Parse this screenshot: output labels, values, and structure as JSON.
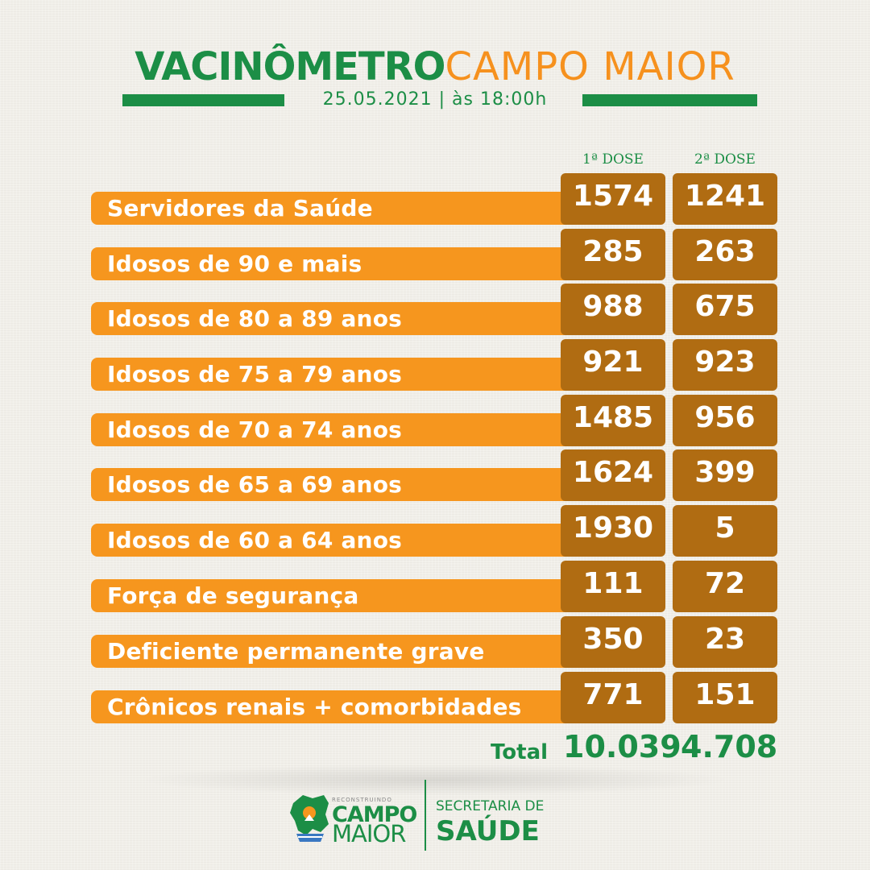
{
  "header": {
    "title_part1": "VACINÔMETRO",
    "title_part2": "CAMPO MAIOR",
    "datetime": "25.05.2021 | às 18:00h"
  },
  "columns": {
    "dose1": "1ª DOSE",
    "dose2": "2ª DOSE"
  },
  "rows": [
    {
      "label": "Servidores da Saúde",
      "dose1": "1574",
      "dose2": "1241"
    },
    {
      "label": "Idosos de 90 e mais",
      "dose1": "285",
      "dose2": "263"
    },
    {
      "label": "Idosos de 80 a 89 anos",
      "dose1": "988",
      "dose2": "675"
    },
    {
      "label": "Idosos de 75 a 79 anos",
      "dose1": "921",
      "dose2": "923"
    },
    {
      "label": "Idosos de 70 a 74 anos",
      "dose1": "1485",
      "dose2": "956"
    },
    {
      "label": "Idosos de 65 a 69 anos",
      "dose1": "1624",
      "dose2": "399"
    },
    {
      "label": "Idosos de 60 a 64 anos",
      "dose1": "1930",
      "dose2": "5"
    },
    {
      "label": "Força de segurança",
      "dose1": "111",
      "dose2": "72"
    },
    {
      "label": "Deficiente permanente grave",
      "dose1": "350",
      "dose2": "23"
    },
    {
      "label": "Crônicos renais + comorbidades",
      "dose1": "771",
      "dose2": "151"
    }
  ],
  "total": {
    "label": "Total",
    "dose1": "10.039",
    "dose2": "4.708"
  },
  "footer": {
    "logo_small": "RECONSTRUINDO",
    "logo_line1": "CAMPO",
    "logo_line2": "MAIOR",
    "secretaria_line1": "SECRETARIA DE",
    "secretaria_line2": "SAÚDE"
  },
  "colors": {
    "green": "#1c8e46",
    "orange": "#f6961e",
    "brown": "#b06c12"
  }
}
